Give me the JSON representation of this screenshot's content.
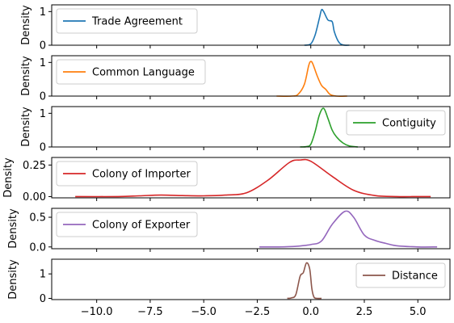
{
  "chart_data": {
    "type": "line",
    "shared_x": true,
    "xlim": [
      -12.1,
      6.5
    ],
    "xticks": [
      -10.0,
      -7.5,
      -5.0,
      -2.5,
      0.0,
      2.5,
      5.0
    ],
    "xtick_labels": [
      "−10.0",
      "−7.5",
      "−5.0",
      "−2.5",
      "0.0",
      "2.5",
      "5.0"
    ],
    "grid": false,
    "panels": [
      {
        "ylabel": "Density",
        "ylim": [
          0,
          1.2
        ],
        "yticks": [
          0,
          1
        ],
        "ytick_labels": [
          "0",
          "1"
        ],
        "legend": "upper left",
        "series": [
          {
            "name": "Trade Agreement",
            "color": "#1f77b4",
            "x": [
              -0.3,
              0.0,
              0.2,
              0.4,
              0.5,
              0.6,
              0.8,
              1.0,
              1.1,
              1.3,
              1.5,
              1.8
            ],
            "y": [
              0.0,
              0.04,
              0.3,
              0.8,
              1.05,
              1.0,
              0.75,
              0.7,
              0.4,
              0.1,
              0.01,
              0.0
            ]
          }
        ]
      },
      {
        "ylabel": "Density",
        "ylim": [
          0,
          1.2
        ],
        "yticks": [
          0,
          1
        ],
        "ytick_labels": [
          "0",
          "1"
        ],
        "legend": "upper left",
        "series": [
          {
            "name": "Common Language",
            "color": "#ff7f0e",
            "x": [
              -1.6,
              -0.9,
              -0.6,
              -0.3,
              -0.1,
              0.0,
              0.1,
              0.3,
              0.5,
              0.7,
              0.9,
              1.2,
              1.7
            ],
            "y": [
              0.0,
              0.0,
              0.05,
              0.35,
              0.9,
              1.03,
              0.95,
              0.6,
              0.32,
              0.2,
              0.05,
              0.0,
              0.0
            ]
          }
        ]
      },
      {
        "ylabel": "Density",
        "ylim": [
          0,
          1.2
        ],
        "yticks": [
          0,
          1
        ],
        "ytick_labels": [
          "0",
          "1"
        ],
        "legend": "upper right",
        "series": [
          {
            "name": "Contiguity",
            "color": "#2ca02c",
            "x": [
              -0.5,
              -0.2,
              0.0,
              0.2,
              0.4,
              0.6,
              0.8,
              1.0,
              1.2,
              1.5,
              1.8,
              2.2
            ],
            "y": [
              0.0,
              0.01,
              0.08,
              0.45,
              0.95,
              1.15,
              0.85,
              0.5,
              0.3,
              0.12,
              0.03,
              0.0
            ]
          }
        ]
      },
      {
        "ylabel": "Density",
        "ylim": [
          -0.01,
          0.31
        ],
        "yticks": [
          0.0,
          0.25
        ],
        "ytick_labels": [
          "0.00",
          "0.25"
        ],
        "legend": "upper left",
        "series": [
          {
            "name": "Colony of Importer",
            "color": "#d62728",
            "x": [
              -11.0,
              -9.0,
              -8.0,
              -7.0,
              -6.0,
              -5.0,
              -4.0,
              -3.0,
              -2.0,
              -1.0,
              -0.5,
              0.0,
              1.0,
              2.0,
              3.0,
              4.0,
              5.0,
              5.6
            ],
            "y": [
              0.0,
              0.0,
              0.006,
              0.012,
              0.008,
              0.006,
              0.012,
              0.03,
              0.13,
              0.27,
              0.29,
              0.28,
              0.16,
              0.05,
              0.008,
              0.0,
              0.0,
              0.0
            ]
          }
        ]
      },
      {
        "ylabel": "Density",
        "ylim": [
          -0.03,
          0.65
        ],
        "yticks": [
          0.0,
          0.5
        ],
        "ytick_labels": [
          "0.0",
          "0.5"
        ],
        "legend": "upper left",
        "series": [
          {
            "name": "Colony of Exporter",
            "color": "#9467bd",
            "x": [
              -2.4,
              -1.5,
              -0.7,
              0.0,
              0.5,
              1.0,
              1.6,
              2.0,
              2.5,
              3.0,
              3.5,
              4.0,
              5.0,
              5.9
            ],
            "y": [
              0.0,
              0.0,
              0.01,
              0.04,
              0.1,
              0.38,
              0.6,
              0.5,
              0.2,
              0.11,
              0.06,
              0.02,
              0.0,
              0.0
            ]
          }
        ]
      },
      {
        "ylabel": "Density",
        "ylim": [
          -0.05,
          1.6
        ],
        "yticks": [
          0,
          1
        ],
        "ytick_labels": [
          "0",
          "1"
        ],
        "legend": "upper right",
        "series": [
          {
            "name": "Distance",
            "color": "#8c564b",
            "x": [
              -1.1,
              -0.9,
              -0.7,
              -0.5,
              -0.35,
              -0.2,
              -0.05,
              0.05,
              0.15,
              0.3,
              0.5
            ],
            "y": [
              0.0,
              0.02,
              0.15,
              0.9,
              1.05,
              1.45,
              1.2,
              0.4,
              0.05,
              0.0,
              0.0
            ]
          }
        ]
      }
    ]
  }
}
